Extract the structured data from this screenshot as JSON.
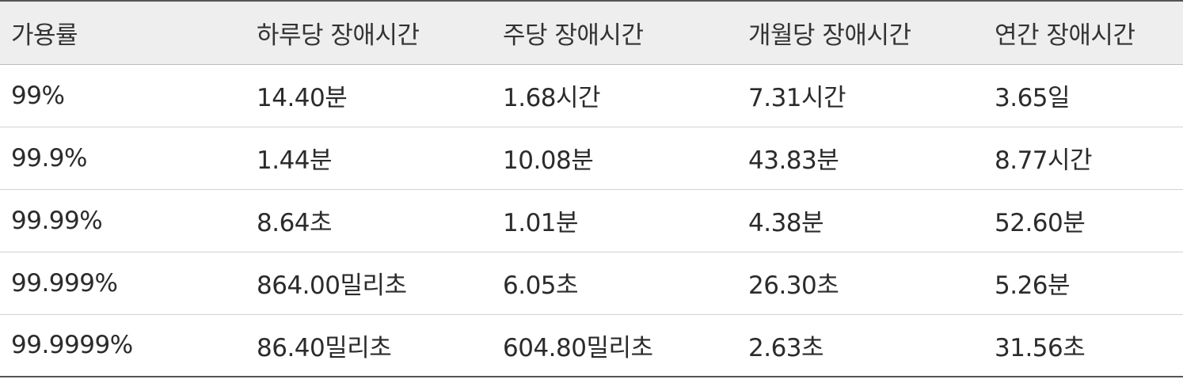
{
  "table": {
    "headers": [
      "가용률",
      "하루당 장애시간",
      "주당 장애시간",
      "개월당 장애시간",
      "연간 장애시간"
    ],
    "rows": [
      [
        "99%",
        "14.40분",
        "1.68시간",
        "7.31시간",
        "3.65일"
      ],
      [
        "99.9%",
        "1.44분",
        "10.08분",
        "43.83분",
        "8.77시간"
      ],
      [
        "99.99%",
        "8.64초",
        "1.01분",
        "4.38분",
        "52.60분"
      ],
      [
        "99.999%",
        "864.00밀리초",
        "6.05초",
        "26.30초",
        "5.26분"
      ],
      [
        "99.9999%",
        "86.40밀리초",
        "604.80밀리초",
        "2.63초",
        "31.56초"
      ]
    ]
  },
  "colors": {
    "header_background": "#eeeeee",
    "rule_strong": "#555555",
    "rule_light": "#d2d2d2",
    "text": "#2b2b2b"
  }
}
